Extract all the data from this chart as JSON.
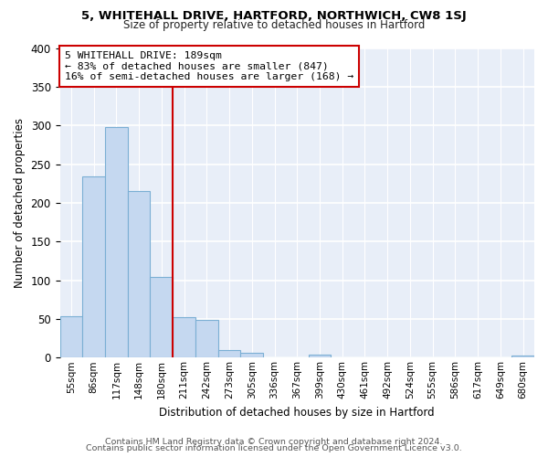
{
  "title1": "5, WHITEHALL DRIVE, HARTFORD, NORTHWICH, CW8 1SJ",
  "title2": "Size of property relative to detached houses in Hartford",
  "xlabel": "Distribution of detached houses by size in Hartford",
  "ylabel": "Number of detached properties",
  "bin_labels": [
    "55sqm",
    "86sqm",
    "117sqm",
    "148sqm",
    "180sqm",
    "211sqm",
    "242sqm",
    "273sqm",
    "305sqm",
    "336sqm",
    "367sqm",
    "399sqm",
    "430sqm",
    "461sqm",
    "492sqm",
    "524sqm",
    "555sqm",
    "586sqm",
    "617sqm",
    "649sqm",
    "680sqm"
  ],
  "bar_heights": [
    54,
    234,
    298,
    215,
    104,
    52,
    49,
    10,
    6,
    0,
    0,
    4,
    0,
    0,
    0,
    0,
    0,
    0,
    0,
    0,
    3
  ],
  "bar_color": "#c5d8f0",
  "bar_edge_color": "#7bafd4",
  "vline_x": 4.5,
  "vline_color": "#cc0000",
  "annotation_text": "5 WHITEHALL DRIVE: 189sqm\n← 83% of detached houses are smaller (847)\n16% of semi-detached houses are larger (168) →",
  "annotation_box_color": "#ffffff",
  "annotation_box_edge": "#cc0000",
  "ylim": [
    0,
    400
  ],
  "yticks": [
    0,
    50,
    100,
    150,
    200,
    250,
    300,
    350,
    400
  ],
  "footer1": "Contains HM Land Registry data © Crown copyright and database right 2024.",
  "footer2": "Contains public sector information licensed under the Open Government Licence v3.0.",
  "bg_color": "#ffffff",
  "plot_bg_color": "#e8eef8",
  "grid_color": "#ffffff",
  "title1_fontsize": 9.5,
  "title2_fontsize": 8.5
}
